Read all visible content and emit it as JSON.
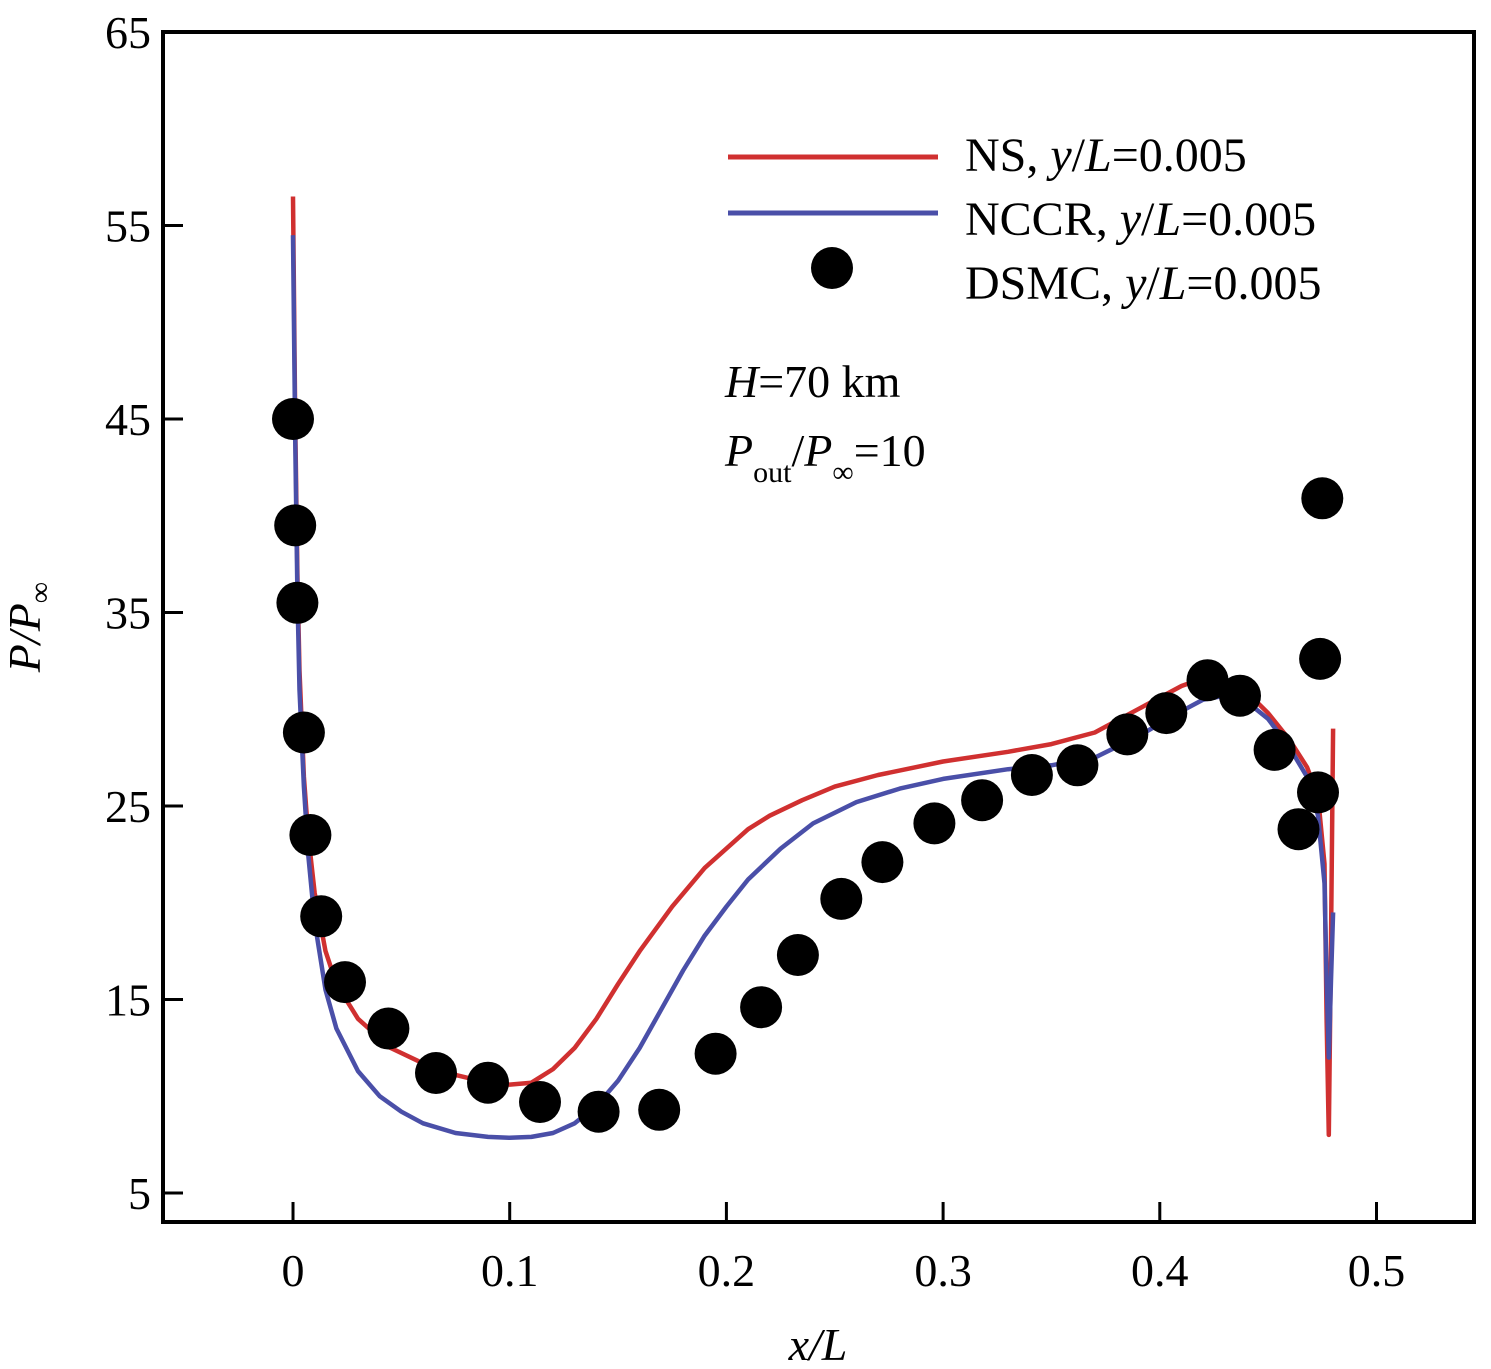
{
  "chart_data": {
    "type": "line",
    "xlabel": "x/L",
    "ylabel": "P/P∞",
    "xlim": [
      -0.06,
      0.545
    ],
    "ylim": [
      3.5,
      65
    ],
    "xticks": [
      0,
      0.1,
      0.2,
      0.3,
      0.4,
      0.5
    ],
    "xtick_labels": [
      "0",
      "0.1",
      "0.2",
      "0.3",
      "0.4",
      "0.5"
    ],
    "yticks": [
      5,
      15,
      25,
      35,
      45,
      55,
      65
    ],
    "ytick_labels": [
      "5",
      "15",
      "25",
      "35",
      "45",
      "55",
      "65"
    ],
    "grid": false,
    "legend_position": "top-right",
    "annotations": [
      "H=70 km",
      "Pout/P∞=10"
    ],
    "series": [
      {
        "name": "NS, y/L=0.005",
        "style": "line",
        "color": "#d03030",
        "x": [
          0,
          0.001,
          0.002,
          0.003,
          0.005,
          0.007,
          0.01,
          0.015,
          0.02,
          0.03,
          0.045,
          0.06,
          0.075,
          0.09,
          0.1,
          0.11,
          0.12,
          0.13,
          0.14,
          0.15,
          0.16,
          0.175,
          0.19,
          0.2,
          0.21,
          0.22,
          0.235,
          0.25,
          0.27,
          0.3,
          0.33,
          0.35,
          0.37,
          0.39,
          0.41,
          0.42,
          0.43,
          0.44,
          0.45,
          0.46,
          0.468,
          0.473,
          0.476,
          0.477,
          0.478,
          0.479,
          0.48
        ],
        "y": [
          56.5,
          45,
          37,
          32,
          26.5,
          23.5,
          20.5,
          17.5,
          15.8,
          14,
          12.5,
          11.7,
          11.1,
          10.7,
          10.6,
          10.7,
          11.4,
          12.5,
          14,
          15.8,
          17.5,
          19.8,
          21.8,
          22.8,
          23.8,
          24.5,
          25.3,
          26,
          26.6,
          27.3,
          27.8,
          28.2,
          28.8,
          30,
          31.2,
          31.6,
          31.4,
          30.9,
          29.8,
          28.4,
          27,
          25.5,
          22,
          14,
          8,
          18,
          29
        ]
      },
      {
        "name": "NCCR, y/L=0.005",
        "style": "line",
        "color": "#4a4fa8",
        "x": [
          0,
          0.001,
          0.002,
          0.003,
          0.005,
          0.007,
          0.01,
          0.015,
          0.02,
          0.03,
          0.04,
          0.05,
          0.06,
          0.075,
          0.09,
          0.1,
          0.11,
          0.12,
          0.13,
          0.14,
          0.15,
          0.16,
          0.17,
          0.18,
          0.19,
          0.2,
          0.21,
          0.225,
          0.24,
          0.26,
          0.28,
          0.3,
          0.33,
          0.35,
          0.37,
          0.39,
          0.41,
          0.42,
          0.43,
          0.44,
          0.45,
          0.46,
          0.468,
          0.473,
          0.476,
          0.477,
          0.478,
          0.479,
          0.48
        ],
        "y": [
          54.5,
          44,
          36,
          31,
          26,
          22.5,
          19,
          15.5,
          13.5,
          11.3,
          10,
          9.2,
          8.6,
          8.1,
          7.9,
          7.85,
          7.9,
          8.1,
          8.6,
          9.5,
          10.8,
          12.5,
          14.5,
          16.5,
          18.3,
          19.8,
          21.2,
          22.8,
          24.1,
          25.2,
          25.9,
          26.4,
          26.9,
          27.1,
          27.5,
          28.6,
          29.9,
          30.5,
          30.7,
          30.4,
          29.5,
          28,
          26.5,
          24.5,
          21,
          16,
          12,
          16,
          19.5
        ]
      },
      {
        "name": "DSMC, y/L=0.005",
        "style": "markers",
        "color": "#000000",
        "x": [
          0,
          0.001,
          0.002,
          0.005,
          0.008,
          0.013,
          0.024,
          0.044,
          0.066,
          0.09,
          0.114,
          0.141,
          0.169,
          0.195,
          0.216,
          0.233,
          0.253,
          0.272,
          0.296,
          0.318,
          0.341,
          0.362,
          0.385,
          0.403,
          0.422,
          0.437,
          0.453,
          0.464,
          0.473,
          0.474,
          0.475
        ],
        "y": [
          45,
          39.5,
          35.5,
          28.8,
          23.5,
          19.3,
          15.9,
          13.5,
          11.2,
          10.7,
          9.7,
          9.2,
          9.3,
          12.2,
          14.6,
          17.3,
          20.2,
          22.1,
          24.1,
          25.3,
          26.6,
          27.1,
          28.7,
          29.8,
          31.5,
          30.7,
          27.9,
          23.8,
          25.7,
          32.6,
          40.9
        ]
      }
    ]
  }
}
